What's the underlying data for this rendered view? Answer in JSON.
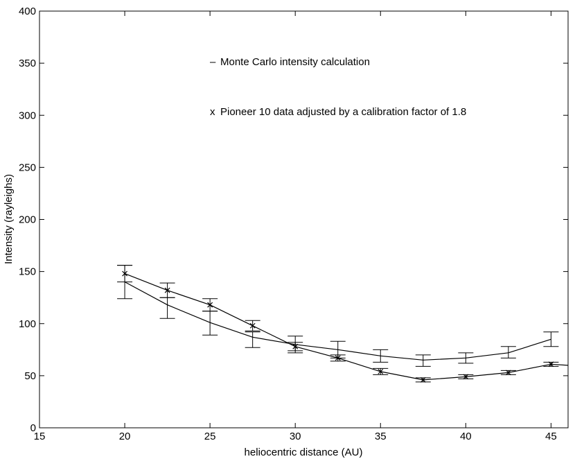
{
  "chart_data": {
    "type": "line",
    "title": "",
    "xlabel": "heliocentric distance (AU)",
    "ylabel": "Intensity (rayleighs)",
    "xlim": [
      15,
      46
    ],
    "ylim": [
      0,
      400
    ],
    "xticks": [
      15,
      20,
      25,
      30,
      35,
      40,
      45
    ],
    "yticks": [
      0,
      50,
      100,
      150,
      200,
      250,
      300,
      350,
      400
    ],
    "grid": false,
    "legend_position": "top-center",
    "legend": [
      {
        "marker": "–",
        "text": "Monte Carlo intensity calculation"
      },
      {
        "marker": "x",
        "text": "Pioneer 10 data adjusted by a calibration factor of 1.8"
      }
    ],
    "series": [
      {
        "name": "Monte Carlo intensity calculation",
        "style": "line",
        "x": [
          20,
          22.5,
          25,
          27.5,
          30,
          32.5,
          35,
          37.5,
          40,
          42.5,
          45
        ],
        "y": [
          140,
          118,
          101,
          87,
          80,
          75,
          69,
          65,
          67,
          72,
          85
        ],
        "err_low": [
          16,
          13,
          12,
          10,
          8,
          8,
          6,
          6,
          5,
          5,
          7
        ],
        "err_high": [
          16,
          7,
          11,
          5,
          8,
          8,
          6,
          5,
          5,
          6,
          7
        ]
      },
      {
        "name": "Pioneer 10 data adjusted by a calibration factor of 1.8",
        "style": "line+x",
        "x": [
          20,
          22.5,
          25,
          27.5,
          30,
          32.5,
          35,
          37.5,
          40,
          42.5,
          45,
          46
        ],
        "y": [
          148,
          132,
          118,
          98,
          78,
          67,
          54,
          46,
          49,
          53,
          61,
          60
        ],
        "err_low": [
          8,
          7,
          6,
          5,
          4,
          3,
          3,
          2,
          2,
          2,
          2,
          null
        ],
        "err_high": [
          8,
          7,
          6,
          5,
          4,
          3,
          3,
          2,
          2,
          2,
          2,
          null
        ]
      }
    ]
  }
}
